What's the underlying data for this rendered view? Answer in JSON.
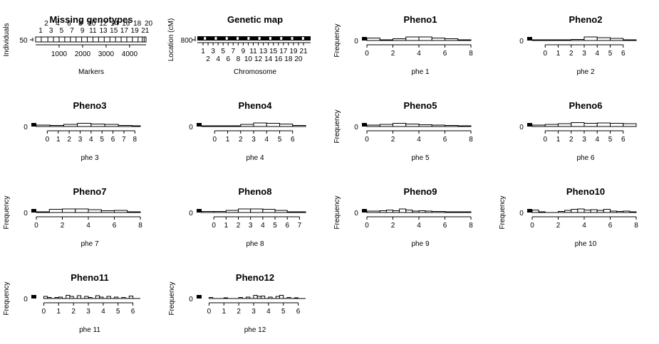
{
  "chart_data": [
    {
      "type": "heatmap",
      "title": "Missing genotypes",
      "xlabel": "Markers",
      "ylabel": "Individuals",
      "x_ticks": [
        1000,
        2000,
        3000,
        4000
      ],
      "xlim": [
        0,
        4700
      ],
      "y_ticks": [
        50
      ],
      "chromosome_labels_top": [
        "2",
        "4",
        "6",
        "8",
        "10",
        "12",
        "14",
        "16",
        "18",
        "20"
      ],
      "chromosome_labels_bottom": [
        "1",
        "3",
        "5",
        "7",
        "9",
        "11",
        "13",
        "15",
        "17",
        "19",
        "21"
      ],
      "chromosome_boundaries": [
        240,
        520,
        760,
        1000,
        1240,
        1480,
        1720,
        1960,
        2200,
        2440,
        2680,
        2920,
        3160,
        3400,
        3640,
        3880,
        4120,
        4360,
        4540,
        4620
      ]
    },
    {
      "type": "bar",
      "title": "Genetic map",
      "xlabel": "Chromosome",
      "ylabel": "Location (cM)",
      "y_ticks": [
        800
      ],
      "chromosome_labels_top": [
        "1",
        "3",
        "5",
        "7",
        "9",
        "11",
        "13",
        "15",
        "17",
        "19",
        "21"
      ],
      "chromosome_labels_bottom": [
        "2",
        "4",
        "6",
        "8",
        "10",
        "12",
        "14",
        "16",
        "18",
        "20"
      ]
    },
    {
      "type": "bar",
      "title": "Pheno1",
      "xlabel": "phe 1",
      "ylabel": "Frequency",
      "xlim": [
        0,
        8
      ],
      "x_ticks": [
        0,
        2,
        4,
        6,
        8
      ],
      "y_ticks": [
        0
      ],
      "na_bar": true,
      "bins": [
        [
          0,
          1,
          0.35
        ],
        [
          1,
          2,
          0.1
        ],
        [
          2,
          3,
          0.25
        ],
        [
          3,
          4,
          0.5
        ],
        [
          4,
          5,
          0.5
        ],
        [
          5,
          6,
          0.35
        ],
        [
          6,
          7,
          0.25
        ],
        [
          7,
          8,
          0.1
        ]
      ]
    },
    {
      "type": "bar",
      "title": "Pheno2",
      "xlabel": "phe 2",
      "ylabel": "",
      "xlim": [
        -1,
        7
      ],
      "x_ticks": [
        0,
        1,
        2,
        3,
        4,
        5,
        6
      ],
      "y_ticks": [
        0
      ],
      "na_bar": true,
      "bins": [
        [
          -1,
          0,
          0.1
        ],
        [
          0,
          1,
          0.1
        ],
        [
          1,
          2,
          0.1
        ],
        [
          2,
          3,
          0.15
        ],
        [
          3,
          4,
          0.5
        ],
        [
          4,
          5,
          0.4
        ],
        [
          5,
          6,
          0.3
        ],
        [
          6,
          7,
          0.05
        ]
      ]
    },
    {
      "type": "bar",
      "title": "Pheno3",
      "xlabel": "phe 3",
      "ylabel": "",
      "xlim": [
        -1,
        8.5
      ],
      "x_ticks": [
        0,
        1,
        2,
        3,
        4,
        5,
        6,
        7,
        8
      ],
      "y_ticks": [
        0
      ],
      "na_bar": true,
      "bins": [
        [
          -1,
          0.25,
          0.2
        ],
        [
          0.25,
          1.5,
          0.15
        ],
        [
          1.5,
          2.75,
          0.3
        ],
        [
          2.75,
          4,
          0.45
        ],
        [
          4,
          5.25,
          0.35
        ],
        [
          5.25,
          6.5,
          0.3
        ],
        [
          6.5,
          7.75,
          0.15
        ],
        [
          7.75,
          8.5,
          0.05
        ]
      ]
    },
    {
      "type": "bar",
      "title": "Pheno4",
      "xlabel": "phe 4",
      "ylabel": "",
      "xlim": [
        -1,
        7
      ],
      "x_ticks": [
        0,
        1,
        2,
        3,
        4,
        5,
        6
      ],
      "y_ticks": [
        0
      ],
      "na_bar": true,
      "bins": [
        [
          -1,
          0,
          0.1
        ],
        [
          0,
          1,
          0.1
        ],
        [
          1,
          2,
          0.1
        ],
        [
          2,
          3,
          0.3
        ],
        [
          3,
          4,
          0.5
        ],
        [
          4,
          5,
          0.45
        ],
        [
          5,
          6,
          0.35
        ],
        [
          6,
          7,
          0.15
        ]
      ]
    },
    {
      "type": "bar",
      "title": "Pheno5",
      "xlabel": "phe 5",
      "ylabel": "Frequency",
      "xlim": [
        0,
        8
      ],
      "x_ticks": [
        0,
        2,
        4,
        6,
        8
      ],
      "y_ticks": [
        0
      ],
      "na_bar": true,
      "bins": [
        [
          0,
          1,
          0.2
        ],
        [
          1,
          2,
          0.3
        ],
        [
          2,
          3,
          0.45
        ],
        [
          3,
          4,
          0.35
        ],
        [
          4,
          5,
          0.25
        ],
        [
          5,
          6,
          0.2
        ],
        [
          6,
          7,
          0.15
        ],
        [
          7,
          8,
          0.05
        ]
      ]
    },
    {
      "type": "bar",
      "title": "Pheno6",
      "xlabel": "phe 6",
      "ylabel": "",
      "xlim": [
        -1,
        7
      ],
      "x_ticks": [
        0,
        1,
        2,
        3,
        4,
        5,
        6
      ],
      "y_ticks": [
        0
      ],
      "na_bar": true,
      "bins": [
        [
          -1,
          0,
          0.2
        ],
        [
          0,
          1,
          0.3
        ],
        [
          1,
          2,
          0.4
        ],
        [
          2,
          3,
          0.55
        ],
        [
          3,
          4,
          0.45
        ],
        [
          4,
          5,
          0.5
        ],
        [
          5,
          6,
          0.45
        ],
        [
          6,
          7,
          0.4
        ]
      ]
    },
    {
      "type": "bar",
      "title": "Pheno7",
      "xlabel": "phe 7",
      "ylabel": "Frequency",
      "xlim": [
        0,
        8
      ],
      "x_ticks": [
        0,
        2,
        4,
        6,
        8
      ],
      "y_ticks": [
        0
      ],
      "na_bar": true,
      "bins": [
        [
          0,
          1,
          0.1
        ],
        [
          1,
          2,
          0.45
        ],
        [
          2,
          3,
          0.5
        ],
        [
          3,
          4,
          0.5
        ],
        [
          4,
          5,
          0.4
        ],
        [
          5,
          6,
          0.25
        ],
        [
          6,
          7,
          0.3
        ],
        [
          7,
          8,
          0.1
        ]
      ]
    },
    {
      "type": "bar",
      "title": "Pheno8",
      "xlabel": "phe 8",
      "ylabel": "",
      "xlim": [
        -1,
        7.5
      ],
      "x_ticks": [
        0,
        1,
        2,
        3,
        4,
        5,
        6,
        7
      ],
      "y_ticks": [
        0
      ],
      "na_bar": true,
      "bins": [
        [
          -1,
          0,
          0.15
        ],
        [
          0,
          1,
          0.15
        ],
        [
          1,
          2,
          0.3
        ],
        [
          2,
          3,
          0.5
        ],
        [
          3,
          4,
          0.5
        ],
        [
          4,
          5,
          0.45
        ],
        [
          5,
          6,
          0.3
        ],
        [
          6,
          7.5,
          0.05
        ]
      ]
    },
    {
      "type": "bar",
      "title": "Pheno9",
      "xlabel": "phe 9",
      "ylabel": "Frequency",
      "xlim": [
        0,
        8
      ],
      "x_ticks": [
        0,
        2,
        4,
        6,
        8
      ],
      "y_ticks": [
        0
      ],
      "na_bar": true,
      "bins": [
        [
          0,
          1,
          0.2
        ],
        [
          1,
          1.5,
          0.25
        ],
        [
          1.5,
          2,
          0.35
        ],
        [
          2,
          2.5,
          0.25
        ],
        [
          2.5,
          3,
          0.5
        ],
        [
          3,
          3.5,
          0.35
        ],
        [
          3.5,
          4,
          0.2
        ],
        [
          4,
          4.5,
          0.25
        ],
        [
          4.5,
          5,
          0.2
        ],
        [
          5,
          6,
          0.15
        ],
        [
          6,
          7,
          0.1
        ],
        [
          7,
          8,
          0.05
        ]
      ]
    },
    {
      "type": "bar",
      "title": "Pheno10",
      "xlabel": "phe 10",
      "ylabel": "Frequency",
      "xlim": [
        0,
        8
      ],
      "x_ticks": [
        0,
        2,
        4,
        6,
        8
      ],
      "y_ticks": [
        0
      ],
      "na_bar": true,
      "bins": [
        [
          0,
          0.5,
          0.35
        ],
        [
          0.5,
          1,
          0.1
        ],
        [
          2,
          2.5,
          0.15
        ],
        [
          2.5,
          3,
          0.3
        ],
        [
          3,
          3.5,
          0.45
        ],
        [
          3.5,
          4,
          0.5
        ],
        [
          4,
          4.5,
          0.35
        ],
        [
          4.5,
          5,
          0.4
        ],
        [
          5,
          5.5,
          0.3
        ],
        [
          5.5,
          6,
          0.45
        ],
        [
          6,
          6.5,
          0.2
        ],
        [
          6.5,
          7,
          0.15
        ],
        [
          7,
          7.5,
          0.2
        ],
        [
          7.5,
          8,
          0.1
        ]
      ]
    },
    {
      "type": "bar",
      "title": "Pheno11",
      "xlabel": "phe 11",
      "ylabel": "Frequency",
      "xlim": [
        -0.5,
        6.5
      ],
      "x_ticks": [
        0,
        1,
        2,
        3,
        4,
        5,
        6
      ],
      "y_ticks": [
        0
      ],
      "na_bar": true,
      "bins": [
        [
          0,
          0.25,
          0.3
        ],
        [
          0.25,
          0.5,
          0.15
        ],
        [
          0.75,
          1,
          0.15
        ],
        [
          1,
          1.25,
          0.2
        ],
        [
          1.5,
          1.75,
          0.45
        ],
        [
          1.75,
          2,
          0.3
        ],
        [
          2.25,
          2.5,
          0.4
        ],
        [
          2.75,
          3,
          0.3
        ],
        [
          3,
          3.25,
          0.15
        ],
        [
          3.5,
          3.75,
          0.4
        ],
        [
          3.75,
          4,
          0.2
        ],
        [
          4.25,
          4.5,
          0.3
        ],
        [
          4.75,
          5,
          0.2
        ],
        [
          5.25,
          5.5,
          0.15
        ],
        [
          5.75,
          6,
          0.35
        ]
      ]
    },
    {
      "type": "bar",
      "title": "Pheno12",
      "xlabel": "phe 12",
      "ylabel": "Frequency",
      "xlim": [
        -0.5,
        6.5
      ],
      "x_ticks": [
        0,
        1,
        2,
        3,
        4,
        5,
        6
      ],
      "y_ticks": [
        0
      ],
      "na_bar": true,
      "bins": [
        [
          0,
          0.25,
          0.15
        ],
        [
          1,
          1.25,
          0.1
        ],
        [
          2,
          2.25,
          0.15
        ],
        [
          2.5,
          2.75,
          0.2
        ],
        [
          3,
          3.25,
          0.45
        ],
        [
          3.25,
          3.5,
          0.3
        ],
        [
          3.5,
          3.75,
          0.35
        ],
        [
          4,
          4.25,
          0.2
        ],
        [
          4.5,
          4.75,
          0.3
        ],
        [
          4.75,
          5,
          0.45
        ],
        [
          5.25,
          5.5,
          0.15
        ],
        [
          5.75,
          6,
          0.1
        ]
      ]
    }
  ]
}
